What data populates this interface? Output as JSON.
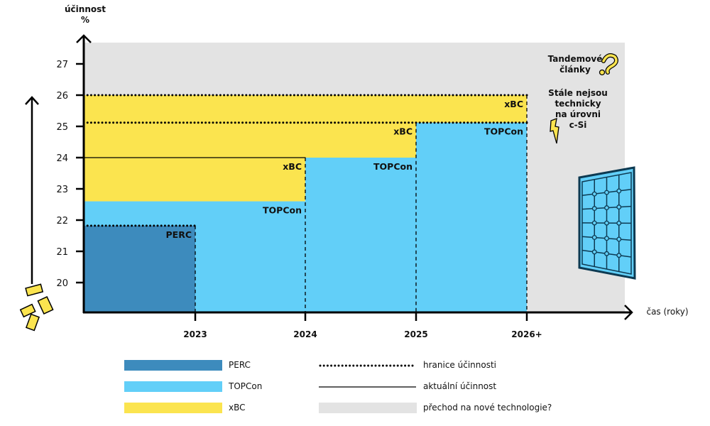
{
  "chart_data": {
    "type": "area",
    "title": "",
    "ylabel_line1": "účinnost",
    "ylabel_line2": "%",
    "xlabel": "čas (roky)",
    "yticks": [
      20,
      21,
      22,
      23,
      24,
      25,
      26,
      27
    ],
    "ylim": [
      19.05,
      27.7
    ],
    "categories": [
      "2023",
      "2024",
      "2025",
      "2026+"
    ],
    "regions": [
      {
        "series": "xBC",
        "from": 0,
        "to": 2,
        "low": 22.6,
        "high": 26
      },
      {
        "series": "xBC",
        "from": 2,
        "to": 3,
        "low": 24,
        "high": 26
      },
      {
        "series": "xBC",
        "from": 3,
        "to": 4,
        "low": 25.12,
        "high": 26
      },
      {
        "series": "TOPCon",
        "from": 0,
        "to": 2,
        "low": 19.05,
        "high": 22.6
      },
      {
        "series": "TOPCon",
        "from": 2,
        "to": 3,
        "low": 19.05,
        "high": 24
      },
      {
        "series": "TOPCon",
        "from": 3,
        "to": 4,
        "low": 19.05,
        "high": 25.12
      },
      {
        "series": "PERC",
        "from": 0,
        "to": 1,
        "low": 19.05,
        "high": 21.82
      }
    ],
    "lines": [
      {
        "kind": "dotted",
        "from": 0,
        "to": 4,
        "value": 26
      },
      {
        "kind": "dotted",
        "from": 0,
        "to": 4,
        "value": 25.12
      },
      {
        "kind": "solid",
        "from": 0,
        "to": 2,
        "value": 24
      },
      {
        "kind": "dotted",
        "from": 0,
        "to": 1,
        "value": 21.82
      }
    ],
    "verticals": [
      {
        "at": 1,
        "top": 21.82
      },
      {
        "at": 2,
        "top": 24
      },
      {
        "at": 3,
        "top": 25.12
      },
      {
        "at": 4,
        "top": 26
      }
    ],
    "labels": [
      {
        "text": "PERC",
        "at": 1,
        "value": 21.82
      },
      {
        "text": "TOPCon",
        "at": 2,
        "value": 22.6
      },
      {
        "text": "xBC",
        "at": 2,
        "value": 24
      },
      {
        "text": "TOPCon",
        "at": 3,
        "value": 24
      },
      {
        "text": "xBC",
        "at": 3,
        "value": 25.12
      },
      {
        "text": "TOPCon",
        "at": 4,
        "value": 25.12
      },
      {
        "text": "xBC",
        "at": 4,
        "value": 26
      }
    ],
    "colors": {
      "PERC": "#3d8bbd",
      "TOPCon": "#62cff8",
      "xBC": "#fbe44f",
      "transition": "#e3e3e3"
    }
  },
  "annotations": {
    "tandem_line1": "Tandemové",
    "tandem_line2": "články",
    "note_lines": [
      "Stále nejsou",
      "technicky",
      "na úrovni",
      "c-Si"
    ]
  },
  "legend": {
    "perc": "PERC",
    "topcon": "TOPCon",
    "xbc": "xBC",
    "boundary": "hranice účinnosti",
    "current": "aktuální účinnost",
    "transition": "přechod na nové technologie?"
  }
}
